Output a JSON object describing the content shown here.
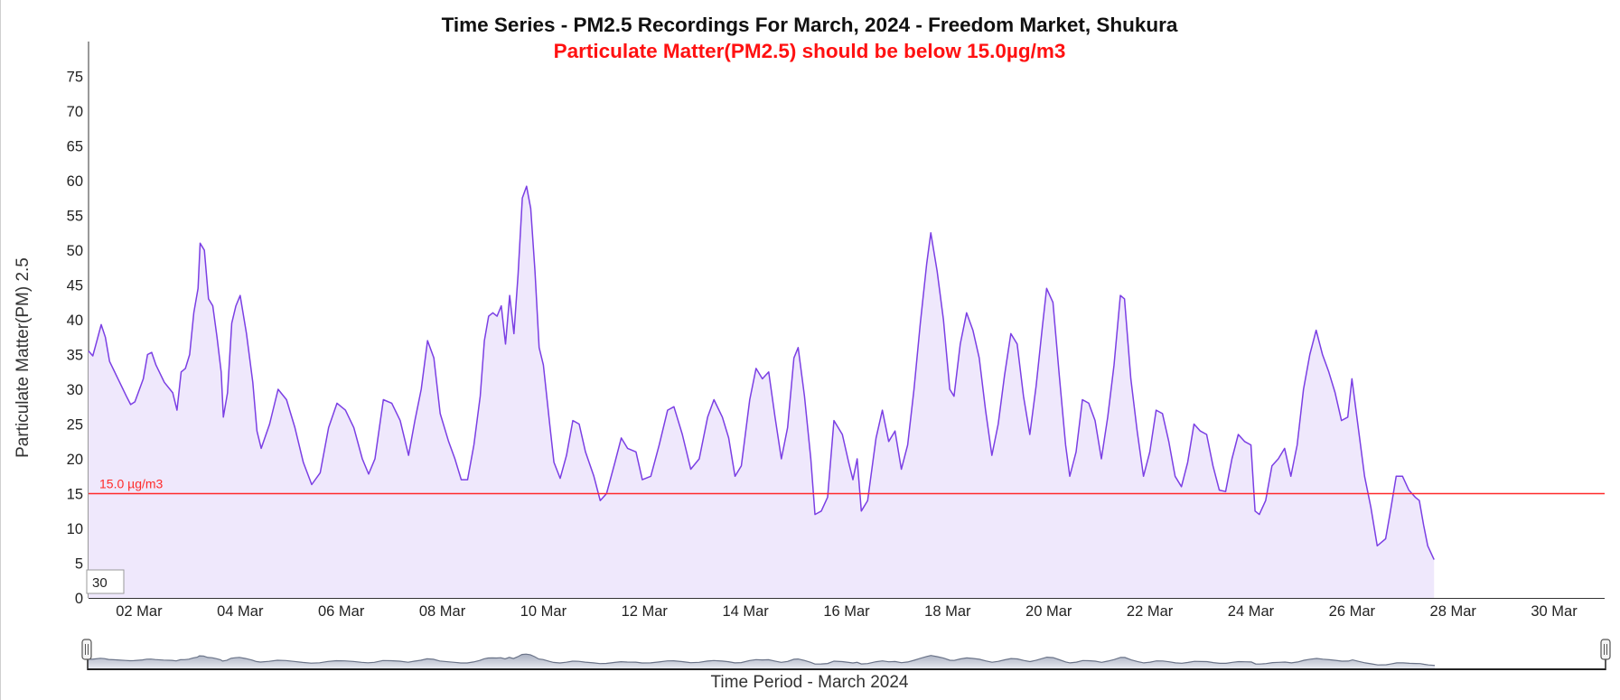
{
  "colors": {
    "line": "#7b3fe4",
    "area": "#efe8fc",
    "threshold": "#ff2a2a",
    "subtitle": "#ff1111",
    "navigator_fill_top": "#aab1c2",
    "navigator_fill_bottom": "#e6e8ef",
    "navigator_line": "#6a7388"
  },
  "chart_data": {
    "type": "area",
    "title": "Time Series - PM2.5 Recordings For March, 2024 - Freedom Market, Shukura",
    "subtitle": "Particulate Matter(PM2.5) should be below 15.0µg/m3",
    "ylabel": "Particulate Matter(PM) 2.5",
    "xlabel": "Time Period - March 2024",
    "ylim": [
      0,
      80
    ],
    "y_ticks": [
      0,
      5,
      10,
      15,
      20,
      25,
      30,
      35,
      40,
      45,
      50,
      55,
      60,
      65,
      70,
      75
    ],
    "x_start": "2024-03-01",
    "x_end": "2024-03-31",
    "x_ticks": [
      "02 Mar",
      "04 Mar",
      "06 Mar",
      "08 Mar",
      "10 Mar",
      "12 Mar",
      "14 Mar",
      "16 Mar",
      "18 Mar",
      "20 Mar",
      "22 Mar",
      "24 Mar",
      "26 Mar",
      "28 Mar",
      "30 Mar"
    ],
    "threshold": {
      "value": 15.0,
      "label": "15.0 µg/m3"
    },
    "window_input_value": "30",
    "series": [
      {
        "points": [
          [
            "2024-03-01 00:00",
            35.5
          ],
          [
            "2024-03-01 02:00",
            34.8
          ],
          [
            "2024-03-01 04:00",
            37.0
          ],
          [
            "2024-03-01 06:00",
            39.3
          ],
          [
            "2024-03-01 08:00",
            37.5
          ],
          [
            "2024-03-01 10:00",
            34.0
          ],
          [
            "2024-03-01 14:00",
            31.5
          ],
          [
            "2024-03-01 18:00",
            29.0
          ],
          [
            "2024-03-01 20:00",
            27.8
          ],
          [
            "2024-03-01 22:00",
            28.2
          ],
          [
            "2024-03-02 02:00",
            31.5
          ],
          [
            "2024-03-02 04:00",
            35.0
          ],
          [
            "2024-03-02 06:00",
            35.3
          ],
          [
            "2024-03-02 08:00",
            33.5
          ],
          [
            "2024-03-02 12:00",
            31.0
          ],
          [
            "2024-03-02 16:00",
            29.5
          ],
          [
            "2024-03-02 18:00",
            27.0
          ],
          [
            "2024-03-02 20:00",
            32.5
          ],
          [
            "2024-03-02 22:00",
            33.0
          ],
          [
            "2024-03-03 00:00",
            35.0
          ],
          [
            "2024-03-03 02:00",
            41.0
          ],
          [
            "2024-03-03 04:00",
            44.5
          ],
          [
            "2024-03-03 05:00",
            51.0
          ],
          [
            "2024-03-03 07:00",
            50.0
          ],
          [
            "2024-03-03 09:00",
            43.0
          ],
          [
            "2024-03-03 11:00",
            42.0
          ],
          [
            "2024-03-03 13:00",
            37.5
          ],
          [
            "2024-03-03 15:00",
            32.5
          ],
          [
            "2024-03-03 16:00",
            26.0
          ],
          [
            "2024-03-03 18:00",
            29.5
          ],
          [
            "2024-03-03 20:00",
            39.5
          ],
          [
            "2024-03-03 22:00",
            42.0
          ],
          [
            "2024-03-04 00:00",
            43.5
          ],
          [
            "2024-03-04 03:00",
            38.0
          ],
          [
            "2024-03-04 06:00",
            31.0
          ],
          [
            "2024-03-04 08:00",
            24.0
          ],
          [
            "2024-03-04 10:00",
            21.5
          ],
          [
            "2024-03-04 14:00",
            25.0
          ],
          [
            "2024-03-04 18:00",
            30.0
          ],
          [
            "2024-03-04 22:00",
            28.5
          ],
          [
            "2024-03-05 02:00",
            24.5
          ],
          [
            "2024-03-05 06:00",
            19.5
          ],
          [
            "2024-03-05 10:00",
            16.3
          ],
          [
            "2024-03-05 14:00",
            18.0
          ],
          [
            "2024-03-05 18:00",
            24.5
          ],
          [
            "2024-03-05 22:00",
            28.0
          ],
          [
            "2024-03-06 02:00",
            27.0
          ],
          [
            "2024-03-06 06:00",
            24.5
          ],
          [
            "2024-03-06 10:00",
            20.0
          ],
          [
            "2024-03-06 13:00",
            17.8
          ],
          [
            "2024-03-06 16:00",
            20.0
          ],
          [
            "2024-03-06 20:00",
            28.5
          ],
          [
            "2024-03-07 00:00",
            28.0
          ],
          [
            "2024-03-07 04:00",
            25.5
          ],
          [
            "2024-03-07 08:00",
            20.5
          ],
          [
            "2024-03-07 11:00",
            25.5
          ],
          [
            "2024-03-07 14:00",
            30.0
          ],
          [
            "2024-03-07 17:00",
            37.0
          ],
          [
            "2024-03-07 20:00",
            34.5
          ],
          [
            "2024-03-07 23:00",
            26.5
          ],
          [
            "2024-03-08 03:00",
            22.5
          ],
          [
            "2024-03-08 06:00",
            20.0
          ],
          [
            "2024-03-08 09:00",
            17.0
          ],
          [
            "2024-03-08 12:00",
            17.0
          ],
          [
            "2024-03-08 15:00",
            22.0
          ],
          [
            "2024-03-08 18:00",
            29.0
          ],
          [
            "2024-03-08 20:00",
            37.0
          ],
          [
            "2024-03-08 22:00",
            40.5
          ],
          [
            "2024-03-09 00:00",
            41.0
          ],
          [
            "2024-03-09 02:00",
            40.5
          ],
          [
            "2024-03-09 04:00",
            42.0
          ],
          [
            "2024-03-09 06:00",
            36.5
          ],
          [
            "2024-03-09 08:00",
            43.5
          ],
          [
            "2024-03-09 10:00",
            38.0
          ],
          [
            "2024-03-09 12:00",
            46.5
          ],
          [
            "2024-03-09 14:00",
            57.5
          ],
          [
            "2024-03-09 16:00",
            59.2
          ],
          [
            "2024-03-09 18:00",
            56.0
          ],
          [
            "2024-03-09 20:00",
            47.0
          ],
          [
            "2024-03-09 22:00",
            36.0
          ],
          [
            "2024-03-10 00:00",
            33.5
          ],
          [
            "2024-03-10 03:00",
            25.0
          ],
          [
            "2024-03-10 05:00",
            19.5
          ],
          [
            "2024-03-10 08:00",
            17.2
          ],
          [
            "2024-03-10 11:00",
            20.5
          ],
          [
            "2024-03-10 14:00",
            25.5
          ],
          [
            "2024-03-10 17:00",
            25.0
          ],
          [
            "2024-03-10 20:00",
            21.0
          ],
          [
            "2024-03-11 00:00",
            17.5
          ],
          [
            "2024-03-11 03:00",
            14.0
          ],
          [
            "2024-03-11 06:00",
            15.0
          ],
          [
            "2024-03-11 10:00",
            19.5
          ],
          [
            "2024-03-11 13:00",
            23.0
          ],
          [
            "2024-03-11 16:00",
            21.5
          ],
          [
            "2024-03-11 20:00",
            21.0
          ],
          [
            "2024-03-11 23:00",
            17.0
          ],
          [
            "2024-03-12 03:00",
            17.5
          ],
          [
            "2024-03-12 07:00",
            22.0
          ],
          [
            "2024-03-12 11:00",
            27.0
          ],
          [
            "2024-03-12 14:00",
            27.5
          ],
          [
            "2024-03-12 18:00",
            23.5
          ],
          [
            "2024-03-12 22:00",
            18.5
          ],
          [
            "2024-03-13 02:00",
            20.0
          ],
          [
            "2024-03-13 06:00",
            26.0
          ],
          [
            "2024-03-13 09:00",
            28.5
          ],
          [
            "2024-03-13 13:00",
            26.0
          ],
          [
            "2024-03-13 16:00",
            23.0
          ],
          [
            "2024-03-13 19:00",
            17.5
          ],
          [
            "2024-03-13 22:00",
            19.0
          ],
          [
            "2024-03-14 02:00",
            28.5
          ],
          [
            "2024-03-14 05:00",
            33.0
          ],
          [
            "2024-03-14 08:00",
            31.5
          ],
          [
            "2024-03-14 11:00",
            32.5
          ],
          [
            "2024-03-14 14:00",
            26.0
          ],
          [
            "2024-03-14 17:00",
            20.0
          ],
          [
            "2024-03-14 20:00",
            24.5
          ],
          [
            "2024-03-14 23:00",
            34.5
          ],
          [
            "2024-03-15 01:00",
            36.0
          ],
          [
            "2024-03-15 04:00",
            29.0
          ],
          [
            "2024-03-15 07:00",
            20.0
          ],
          [
            "2024-03-15 09:00",
            12.0
          ],
          [
            "2024-03-15 12:00",
            12.5
          ],
          [
            "2024-03-15 15:00",
            14.5
          ],
          [
            "2024-03-15 18:00",
            25.5
          ],
          [
            "2024-03-15 22:00",
            23.5
          ],
          [
            "2024-03-16 01:00",
            19.5
          ],
          [
            "2024-03-16 03:00",
            17.0
          ],
          [
            "2024-03-16 05:00",
            20.0
          ],
          [
            "2024-03-16 07:00",
            12.5
          ],
          [
            "2024-03-16 10:00",
            14.0
          ],
          [
            "2024-03-16 14:00",
            23.0
          ],
          [
            "2024-03-16 17:00",
            27.0
          ],
          [
            "2024-03-16 20:00",
            22.5
          ],
          [
            "2024-03-16 23:00",
            24.0
          ],
          [
            "2024-03-17 02:00",
            18.5
          ],
          [
            "2024-03-17 05:00",
            22.0
          ],
          [
            "2024-03-17 08:00",
            30.0
          ],
          [
            "2024-03-17 11:00",
            39.5
          ],
          [
            "2024-03-17 14:00",
            48.0
          ],
          [
            "2024-03-17 16:00",
            52.5
          ],
          [
            "2024-03-17 19:00",
            47.0
          ],
          [
            "2024-03-17 22:00",
            40.0
          ],
          [
            "2024-03-18 01:00",
            30.0
          ],
          [
            "2024-03-18 03:00",
            29.0
          ],
          [
            "2024-03-18 06:00",
            36.5
          ],
          [
            "2024-03-18 09:00",
            41.0
          ],
          [
            "2024-03-18 12:00",
            38.5
          ],
          [
            "2024-03-18 15:00",
            34.5
          ],
          [
            "2024-03-18 18:00",
            27.0
          ],
          [
            "2024-03-18 21:00",
            20.5
          ],
          [
            "2024-03-19 00:00",
            25.0
          ],
          [
            "2024-03-19 03:00",
            32.0
          ],
          [
            "2024-03-19 06:00",
            38.0
          ],
          [
            "2024-03-19 09:00",
            36.5
          ],
          [
            "2024-03-19 12:00",
            29.0
          ],
          [
            "2024-03-19 15:00",
            23.5
          ],
          [
            "2024-03-19 18:00",
            30.5
          ],
          [
            "2024-03-19 21:00",
            39.0
          ],
          [
            "2024-03-19 23:00",
            44.5
          ],
          [
            "2024-03-20 02:00",
            42.5
          ],
          [
            "2024-03-20 05:00",
            32.0
          ],
          [
            "2024-03-20 08:00",
            22.0
          ],
          [
            "2024-03-20 10:00",
            17.5
          ],
          [
            "2024-03-20 13:00",
            21.0
          ],
          [
            "2024-03-20 16:00",
            28.5
          ],
          [
            "2024-03-20 19:00",
            28.0
          ],
          [
            "2024-03-20 22:00",
            25.5
          ],
          [
            "2024-03-21 01:00",
            20.0
          ],
          [
            "2024-03-21 04:00",
            26.0
          ],
          [
            "2024-03-21 07:00",
            33.5
          ],
          [
            "2024-03-21 10:00",
            43.5
          ],
          [
            "2024-03-21 12:00",
            43.0
          ],
          [
            "2024-03-21 15:00",
            31.5
          ],
          [
            "2024-03-21 18:00",
            24.0
          ],
          [
            "2024-03-21 21:00",
            17.5
          ],
          [
            "2024-03-22 00:00",
            21.0
          ],
          [
            "2024-03-22 03:00",
            27.0
          ],
          [
            "2024-03-22 06:00",
            26.5
          ],
          [
            "2024-03-22 09:00",
            22.5
          ],
          [
            "2024-03-22 12:00",
            17.5
          ],
          [
            "2024-03-22 15:00",
            16.0
          ],
          [
            "2024-03-22 18:00",
            19.5
          ],
          [
            "2024-03-22 21:00",
            25.0
          ],
          [
            "2024-03-23 00:00",
            24.0
          ],
          [
            "2024-03-23 03:00",
            23.5
          ],
          [
            "2024-03-23 06:00",
            19.0
          ],
          [
            "2024-03-23 09:00",
            15.5
          ],
          [
            "2024-03-23 12:00",
            15.3
          ],
          [
            "2024-03-23 15:00",
            20.0
          ],
          [
            "2024-03-23 18:00",
            23.5
          ],
          [
            "2024-03-23 21:00",
            22.5
          ],
          [
            "2024-03-24 00:00",
            22.0
          ],
          [
            "2024-03-24 02:00",
            12.5
          ],
          [
            "2024-03-24 04:00",
            12.0
          ],
          [
            "2024-03-24 07:00",
            14.0
          ],
          [
            "2024-03-24 10:00",
            19.0
          ],
          [
            "2024-03-24 13:00",
            20.0
          ],
          [
            "2024-03-24 16:00",
            21.5
          ],
          [
            "2024-03-24 19:00",
            17.5
          ],
          [
            "2024-03-24 22:00",
            22.0
          ],
          [
            "2024-03-25 01:00",
            30.0
          ],
          [
            "2024-03-25 04:00",
            35.0
          ],
          [
            "2024-03-25 07:00",
            38.5
          ],
          [
            "2024-03-25 10:00",
            35.0
          ],
          [
            "2024-03-25 13:00",
            32.5
          ],
          [
            "2024-03-25 16:00",
            29.5
          ],
          [
            "2024-03-25 19:00",
            25.5
          ],
          [
            "2024-03-25 22:00",
            26.0
          ],
          [
            "2024-03-26 00:00",
            31.5
          ],
          [
            "2024-03-26 03:00",
            24.5
          ],
          [
            "2024-03-26 06:00",
            17.5
          ],
          [
            "2024-03-26 09:00",
            13.0
          ],
          [
            "2024-03-26 12:00",
            7.5
          ],
          [
            "2024-03-26 16:00",
            8.5
          ],
          [
            "2024-03-26 18:00",
            12.0
          ],
          [
            "2024-03-26 21:00",
            17.5
          ],
          [
            "2024-03-27 00:00",
            17.5
          ],
          [
            "2024-03-27 03:00",
            15.5
          ],
          [
            "2024-03-27 06:00",
            14.5
          ],
          [
            "2024-03-27 08:00",
            14.0
          ],
          [
            "2024-03-27 10:00",
            10.5
          ],
          [
            "2024-03-27 12:00",
            7.5
          ],
          [
            "2024-03-27 15:00",
            5.5
          ]
        ]
      }
    ]
  }
}
